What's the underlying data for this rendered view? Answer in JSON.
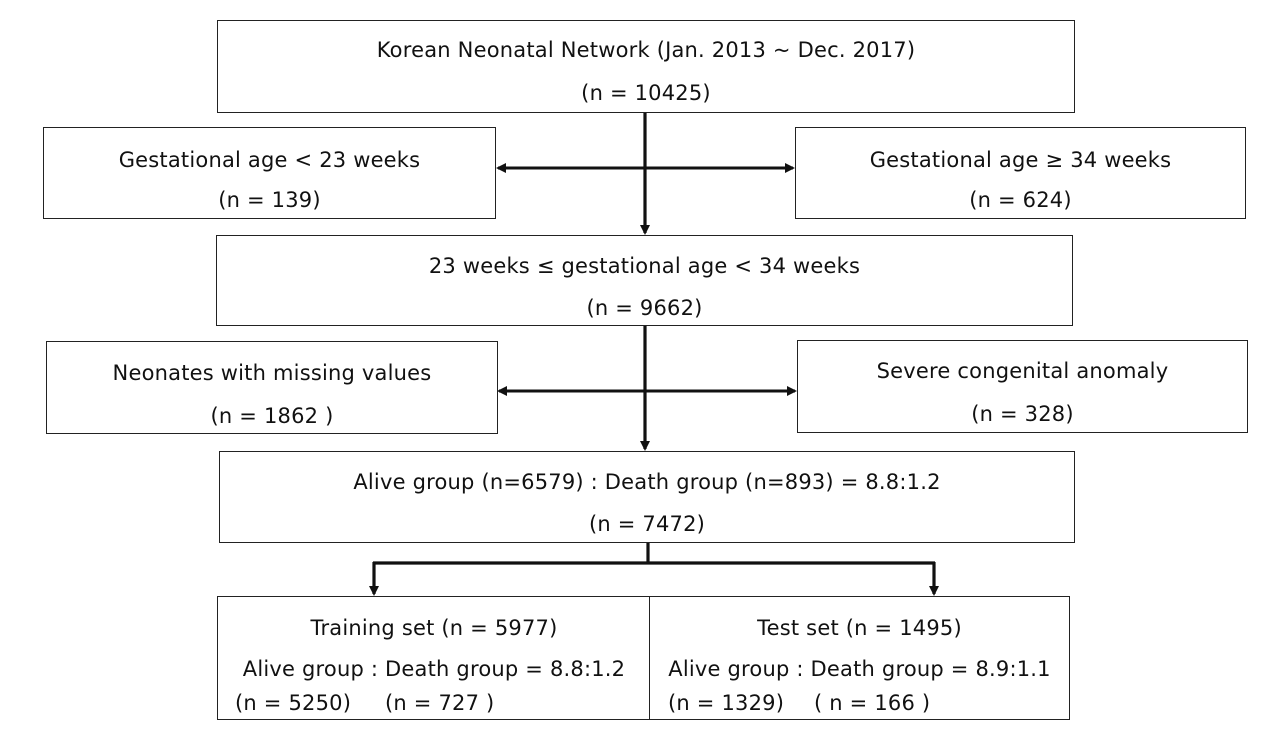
{
  "boxes": {
    "source": {
      "title": "Korean Neonatal Network (Jan. 2013 ~ Dec. 2017)",
      "count": "(n = 10425)"
    },
    "exclude_young": {
      "title": "Gestational age < 23 weeks",
      "count": "(n = 139)"
    },
    "exclude_old": {
      "title": "Gestational age ≥ 34 weeks",
      "count": "(n = 624)"
    },
    "eligible": {
      "title": "23 weeks ≤ gestational age < 34 weeks",
      "count": "(n = 9662)"
    },
    "exclude_missing": {
      "title": "Neonates with missing values",
      "count": "(n = 1862 )"
    },
    "exclude_anomaly": {
      "title": "Severe congenital anomaly",
      "count": "(n = 328)"
    },
    "final": {
      "title": "Alive group (n=6579) : Death group (n=893) = 8.8:1.2",
      "count": "(n = 7472)"
    },
    "training": {
      "title": "Training set (n = 5977)",
      "ratio": "Alive group : Death group = 8.8:1.2",
      "alive_count": "(n = 5250)",
      "death_count": "(n = 727 )"
    },
    "test": {
      "title": "Test set (n = 1495)",
      "ratio": "Alive group : Death group = 8.9:1.1",
      "alive_count": "(n = 1329)",
      "death_count": "( n = 166 )"
    }
  },
  "colors": {
    "border": "#222222",
    "arrow": "#111111",
    "text": "#111111",
    "background": "#ffffff"
  }
}
